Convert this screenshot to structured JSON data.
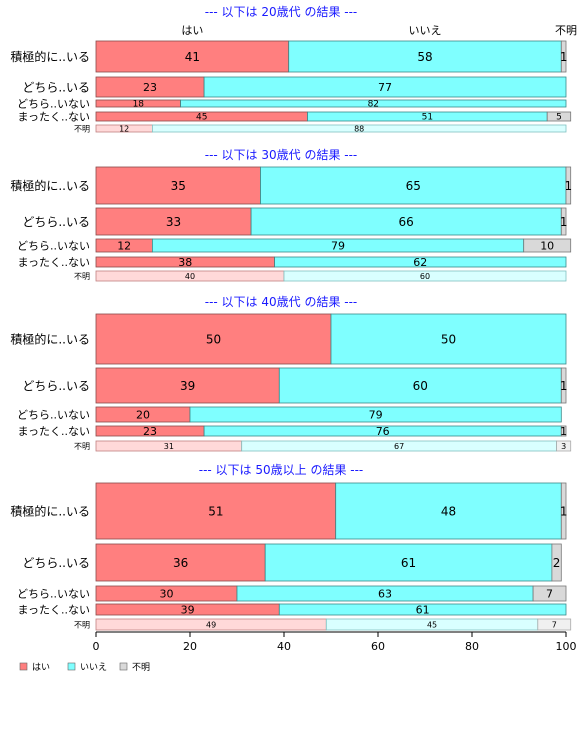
{
  "chart_data": {
    "type": "bar",
    "orientation": "horizontal",
    "stacked": true,
    "xlim": [
      0,
      100
    ],
    "x_ticks": [
      "0",
      "20",
      "40",
      "60",
      "80",
      "100"
    ],
    "column_headers": [
      "はい",
      "いいえ",
      "不明"
    ],
    "legend": {
      "placement": "bottom-left",
      "items": [
        {
          "label": "はい",
          "color": "#FF7F7F"
        },
        {
          "label": "いいえ",
          "color": "#7FFFFF"
        },
        {
          "label": "不明",
          "color": "#D9D9D9"
        }
      ]
    },
    "panels": [
      {
        "title": "--- 以下は 20歳代 の結果 ---",
        "categories": [
          "積極的に..いる",
          "どちら..いる",
          "どちら..いない",
          "まったく..ない",
          "不明"
        ],
        "series": [
          {
            "name": "はい",
            "values": [
              41,
              23,
              18,
              45,
              12
            ]
          },
          {
            "name": "いいえ",
            "values": [
              58,
              77,
              82,
              51,
              88
            ]
          },
          {
            "name": "不明",
            "values": [
              1,
              0,
              0,
              5,
              0
            ]
          }
        ]
      },
      {
        "title": "--- 以下は 30歳代 の結果 ---",
        "categories": [
          "積極的に..いる",
          "どちら..いる",
          "どちら..いない",
          "まったく..ない",
          "不明"
        ],
        "series": [
          {
            "name": "はい",
            "values": [
              35,
              33,
              12,
              38,
              40
            ]
          },
          {
            "name": "いいえ",
            "values": [
              65,
              66,
              79,
              62,
              60
            ]
          },
          {
            "name": "不明",
            "values": [
              1,
              1,
              10,
              0,
              0
            ]
          }
        ]
      },
      {
        "title": "--- 以下は 40歳代 の結果 ---",
        "categories": [
          "積極的に..いる",
          "どちら..いる",
          "どちら..いない",
          "まったく..ない",
          "不明"
        ],
        "series": [
          {
            "name": "はい",
            "values": [
              50,
              39,
              20,
              23,
              31
            ]
          },
          {
            "name": "いいえ",
            "values": [
              50,
              60,
              79,
              76,
              67
            ]
          },
          {
            "name": "不明",
            "values": [
              0,
              1,
              0,
              1,
              3
            ]
          }
        ]
      },
      {
        "title": "--- 以下は 50歳以上 の結果 ---",
        "categories": [
          "積極的に..いる",
          "どちら..いる",
          "どちら..いない",
          "まったく..ない",
          "不明"
        ],
        "series": [
          {
            "name": "はい",
            "values": [
              51,
              36,
              30,
              39,
              49
            ]
          },
          {
            "name": "いいえ",
            "values": [
              48,
              61,
              63,
              61,
              45
            ]
          },
          {
            "name": "不明",
            "values": [
              1,
              2,
              7,
              0,
              7
            ]
          }
        ]
      }
    ]
  }
}
